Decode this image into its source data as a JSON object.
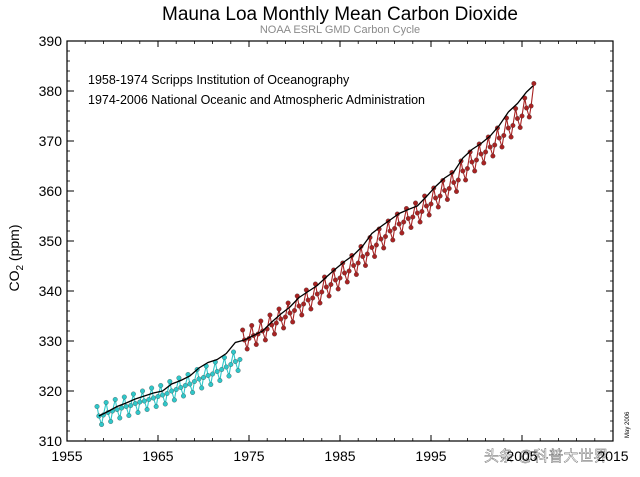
{
  "chart_data": {
    "type": "line",
    "title": "Mauna Loa Monthly Mean Carbon Dioxide",
    "subtitle": "NOAA ESRL GMD Carbon Cycle",
    "ylabel": "CO₂ (ppm)",
    "xlabel": "",
    "xlim": [
      1955,
      2015
    ],
    "ylim": [
      310,
      390
    ],
    "xticks": [
      1955,
      1965,
      1975,
      1985,
      1995,
      2005,
      2015
    ],
    "x_tick_labels": [
      "1955",
      "1965",
      "1975",
      "1985",
      "1995",
      "2005",
      "2015"
    ],
    "yticks": [
      310,
      320,
      330,
      340,
      350,
      360,
      370,
      380,
      390
    ],
    "y_tick_labels": [
      "310",
      "320",
      "330",
      "340",
      "350",
      "360",
      "370",
      "380",
      "390"
    ],
    "grid": false,
    "annotations": [
      "1958-1974 Scripps Institution of Oceanography",
      "1974-2006 National Oceanic and Atmospheric Administration"
    ],
    "date_stamp": "May 2006",
    "series": [
      {
        "name": "1958-1974 Scripps Institution of Oceanography",
        "color": "#2fc7c9",
        "style": "monthly points",
        "x": [
          1958.3,
          1958.5,
          1958.8,
          1959.0,
          1959.3,
          1959.5,
          1959.8,
          1960.0,
          1960.3,
          1960.5,
          1960.8,
          1961.0,
          1961.3,
          1961.5,
          1961.8,
          1962.0,
          1962.3,
          1962.5,
          1962.8,
          1963.0,
          1963.3,
          1963.5,
          1963.8,
          1964.0,
          1964.3,
          1964.5,
          1964.8,
          1965.0,
          1965.3,
          1965.5,
          1965.8,
          1966.0,
          1966.3,
          1966.5,
          1966.8,
          1967.0,
          1967.3,
          1967.5,
          1967.8,
          1968.0,
          1968.3,
          1968.5,
          1968.8,
          1969.0,
          1969.3,
          1969.5,
          1969.8,
          1970.0,
          1970.3,
          1970.5,
          1970.8,
          1971.0,
          1971.3,
          1971.5,
          1971.8,
          1972.0,
          1972.3,
          1972.5,
          1972.8,
          1973.0,
          1973.3,
          1973.5,
          1973.8,
          1974.0
        ],
        "y": [
          316.9,
          315.0,
          313.3,
          315.2,
          317.7,
          315.7,
          313.9,
          316.0,
          318.3,
          316.3,
          314.6,
          316.6,
          318.8,
          316.9,
          315.1,
          317.1,
          319.4,
          317.5,
          315.7,
          317.8,
          320.0,
          318.0,
          316.3,
          318.3,
          320.6,
          318.6,
          316.9,
          318.9,
          321.1,
          319.2,
          317.4,
          319.5,
          321.9,
          320.0,
          318.2,
          320.3,
          322.6,
          320.7,
          319.0,
          321.1,
          323.3,
          321.4,
          319.7,
          321.9,
          324.3,
          322.4,
          320.6,
          322.7,
          325.0,
          323.1,
          321.3,
          323.4,
          325.8,
          323.9,
          322.1,
          324.3,
          326.7,
          324.8,
          323.0,
          325.3,
          327.8,
          325.9,
          324.1,
          326.3
        ]
      },
      {
        "name": "1974-2006 National Oceanic and Atmospheric Administration",
        "color": "#a82323",
        "style": "monthly points",
        "x": [
          1974.3,
          1974.5,
          1974.8,
          1975.0,
          1975.3,
          1975.5,
          1975.8,
          1976.0,
          1976.3,
          1976.5,
          1976.8,
          1977.0,
          1977.3,
          1977.5,
          1977.8,
          1978.0,
          1978.3,
          1978.5,
          1978.8,
          1979.0,
          1979.3,
          1979.5,
          1979.8,
          1980.0,
          1980.3,
          1980.5,
          1980.8,
          1981.0,
          1981.3,
          1981.5,
          1981.8,
          1982.0,
          1982.3,
          1982.5,
          1982.8,
          1983.0,
          1983.3,
          1983.5,
          1983.8,
          1984.0,
          1984.3,
          1984.5,
          1984.8,
          1985.0,
          1985.3,
          1985.5,
          1985.8,
          1986.0,
          1986.3,
          1986.5,
          1986.8,
          1987.0,
          1987.3,
          1987.5,
          1987.8,
          1988.0,
          1988.3,
          1988.5,
          1988.8,
          1989.0,
          1989.3,
          1989.5,
          1989.8,
          1990.0,
          1990.3,
          1990.5,
          1990.8,
          1991.0,
          1991.3,
          1991.5,
          1991.8,
          1992.0,
          1992.3,
          1992.5,
          1992.8,
          1993.0,
          1993.3,
          1993.5,
          1993.8,
          1994.0,
          1994.3,
          1994.5,
          1994.8,
          1995.0,
          1995.3,
          1995.5,
          1995.8,
          1996.0,
          1996.3,
          1996.5,
          1996.8,
          1997.0,
          1997.3,
          1997.5,
          1997.8,
          1998.0,
          1998.3,
          1998.5,
          1998.8,
          1999.0,
          1999.3,
          1999.5,
          1999.8,
          2000.0,
          2000.3,
          2000.5,
          2000.8,
          2001.0,
          2001.3,
          2001.5,
          2001.8,
          2002.0,
          2002.3,
          2002.5,
          2002.8,
          2003.0,
          2003.3,
          2003.5,
          2003.8,
          2004.0,
          2004.3,
          2004.5,
          2004.8,
          2005.0,
          2005.3,
          2005.5,
          2005.8,
          2006.0,
          2006.3
        ],
        "y": [
          332.2,
          330.2,
          328.4,
          330.5,
          333.1,
          331.1,
          329.3,
          331.4,
          334.0,
          332.0,
          330.2,
          332.4,
          335.2,
          333.2,
          331.4,
          333.6,
          336.4,
          334.4,
          332.6,
          334.8,
          337.6,
          335.6,
          333.8,
          336.1,
          339.0,
          337.0,
          335.2,
          337.4,
          340.2,
          338.2,
          336.4,
          338.6,
          341.4,
          339.4,
          337.6,
          339.8,
          342.8,
          340.8,
          339.0,
          341.3,
          344.2,
          342.2,
          340.4,
          342.6,
          345.6,
          343.6,
          341.8,
          344.0,
          347.1,
          345.1,
          343.3,
          345.6,
          348.9,
          346.9,
          345.1,
          347.4,
          350.7,
          348.7,
          346.9,
          349.2,
          352.4,
          350.4,
          348.6,
          350.9,
          354.0,
          352.0,
          350.2,
          352.5,
          355.4,
          353.4,
          351.6,
          353.8,
          356.5,
          354.5,
          352.7,
          354.8,
          357.6,
          355.6,
          353.8,
          355.9,
          359.0,
          357.0,
          355.2,
          357.4,
          360.6,
          358.6,
          356.8,
          359.0,
          362.1,
          360.1,
          358.3,
          360.5,
          363.7,
          361.7,
          359.9,
          362.2,
          366.0,
          364.0,
          362.2,
          364.5,
          367.8,
          365.8,
          364.0,
          366.2,
          369.4,
          367.4,
          365.6,
          367.8,
          370.8,
          368.8,
          367.0,
          369.2,
          372.6,
          370.6,
          368.8,
          371.1,
          374.6,
          372.6,
          370.8,
          373.1,
          376.5,
          374.5,
          372.7,
          375.0,
          378.6,
          376.6,
          374.8,
          377.0,
          381.5
        ]
      },
      {
        "name": "",
        "color": "#000000",
        "style": "annual trend line",
        "x": [
          1958.5,
          1959.5,
          1960.5,
          1961.5,
          1962.5,
          1963.5,
          1964.5,
          1965.5,
          1966.5,
          1967.5,
          1968.5,
          1969.5,
          1970.5,
          1971.5,
          1972.5,
          1973.5,
          1974.5,
          1975.5,
          1976.5,
          1977.5,
          1978.5,
          1979.5,
          1980.5,
          1981.5,
          1982.5,
          1983.5,
          1984.5,
          1985.5,
          1986.5,
          1987.5,
          1988.5,
          1989.5,
          1990.5,
          1991.5,
          1992.5,
          1993.5,
          1994.5,
          1995.5,
          1996.5,
          1997.5,
          1998.5,
          1999.5,
          2000.5,
          2001.5,
          2002.5,
          2003.5,
          2004.5,
          2005.5,
          2006.2
        ],
        "y": [
          315.0,
          315.9,
          316.9,
          317.6,
          318.4,
          319.0,
          319.6,
          320.0,
          321.4,
          322.1,
          323.0,
          324.6,
          325.7,
          326.3,
          327.5,
          329.7,
          330.2,
          331.1,
          332.0,
          333.8,
          335.4,
          336.8,
          338.7,
          339.9,
          341.1,
          342.8,
          344.4,
          345.9,
          347.2,
          349.0,
          351.5,
          352.9,
          354.2,
          355.5,
          356.3,
          357.0,
          358.9,
          360.9,
          362.6,
          363.8,
          366.6,
          368.3,
          369.5,
          371.0,
          373.1,
          375.8,
          377.5,
          379.8,
          381.0
        ]
      }
    ]
  },
  "watermark": {
    "text": "头条 @科普大世界",
    "color": "#ffffff"
  }
}
